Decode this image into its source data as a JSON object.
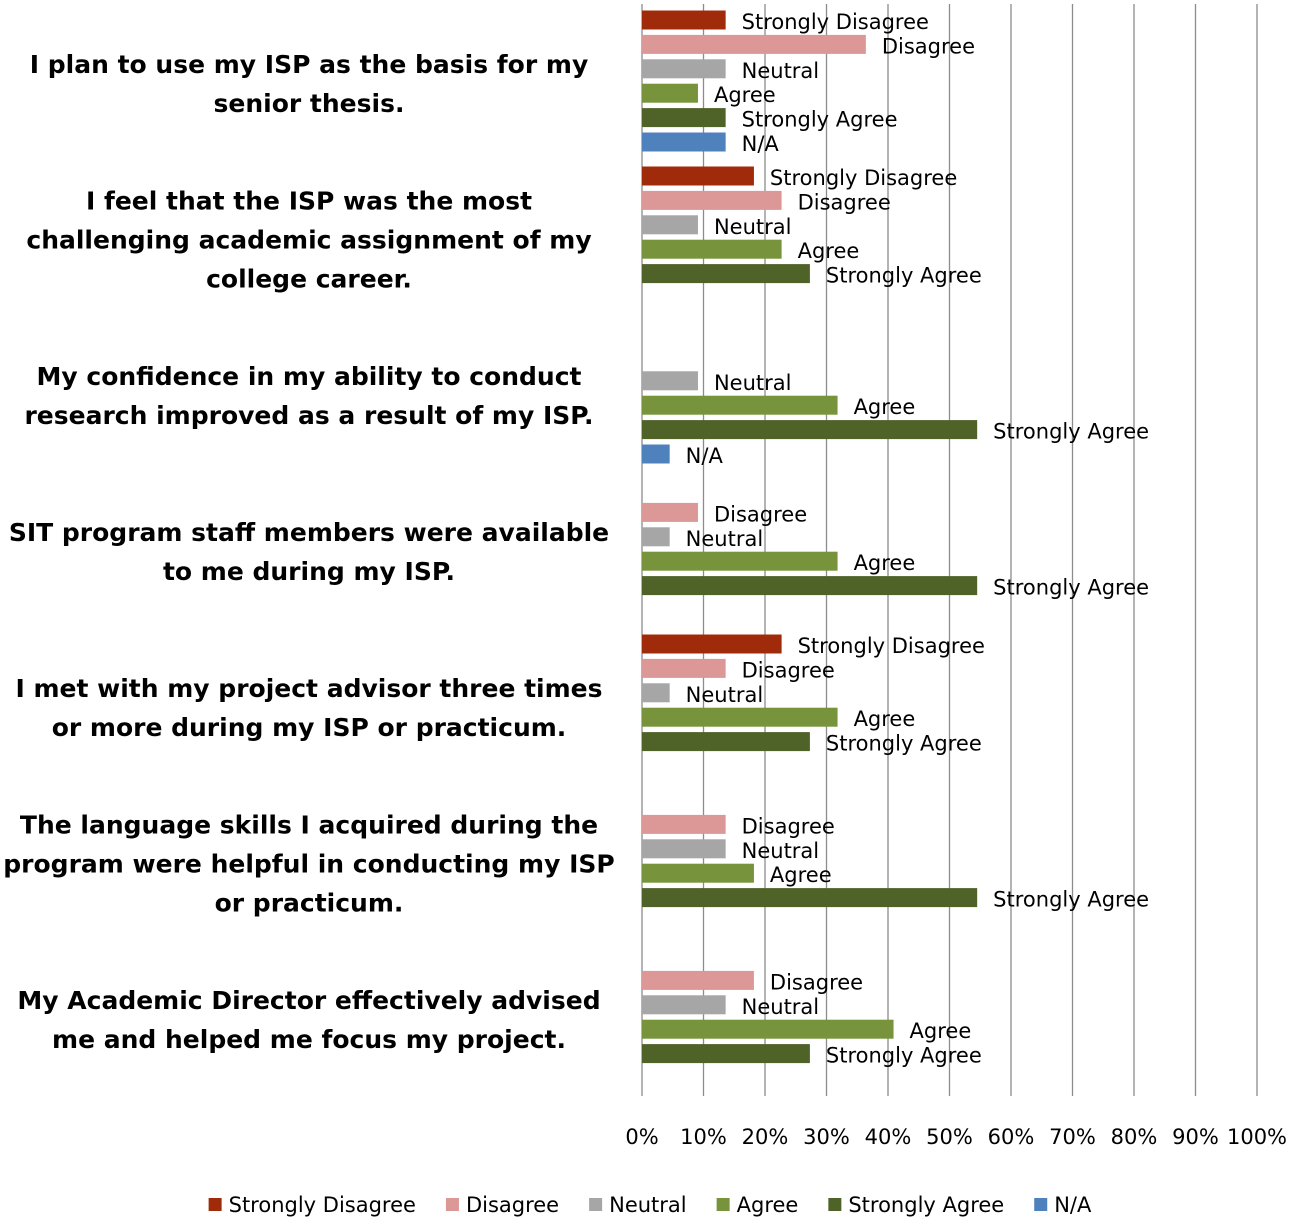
{
  "chart_data": {
    "type": "barh",
    "categories": [
      "I plan to use my ISP as the basis for my senior thesis.",
      "I feel that the ISP was the most challenging academic assignment of my college career.",
      "My confidence in my ability to conduct research improved as a result of my ISP.",
      "SIT program staff members were available to me during my ISP.",
      "I met with my project advisor three times or more during my ISP or practicum.",
      "The language skills I acquired during the program were helpful in conducting my ISP or practicum.",
      "My Academic Director effectively advised me and helped me focus my project."
    ],
    "series": [
      {
        "name": "Strongly Disagree",
        "color": "#a02b0b",
        "values": [
          13.6,
          18.2,
          null,
          null,
          22.7,
          null,
          null
        ]
      },
      {
        "name": "Disagree",
        "color": "#dc9896",
        "values": [
          36.4,
          22.7,
          null,
          9.1,
          13.6,
          13.6,
          18.2
        ]
      },
      {
        "name": "Neutral",
        "color": "#a6a6a6",
        "values": [
          13.6,
          9.1,
          9.1,
          4.5,
          4.5,
          13.6,
          13.6
        ]
      },
      {
        "name": "Agree",
        "color": "#77933c",
        "values": [
          9.1,
          22.7,
          31.8,
          31.8,
          31.8,
          18.2,
          40.9
        ]
      },
      {
        "name": "Strongly Agree",
        "color": "#4f6228",
        "values": [
          13.6,
          27.3,
          54.5,
          54.5,
          27.3,
          54.5,
          27.3
        ]
      },
      {
        "name": "N/A",
        "color": "#4f81bd",
        "values": [
          13.6,
          null,
          4.5,
          null,
          null,
          null,
          null
        ]
      }
    ],
    "xlim": [
      0,
      100
    ],
    "xticks": [
      {
        "value": 0,
        "label": "0%"
      },
      {
        "value": 10,
        "label": "10%"
      },
      {
        "value": 20,
        "label": "20%"
      },
      {
        "value": 30,
        "label": "30%"
      },
      {
        "value": 40,
        "label": "40%"
      },
      {
        "value": 50,
        "label": "50%"
      },
      {
        "value": 60,
        "label": "60%"
      },
      {
        "value": 70,
        "label": "70%"
      },
      {
        "value": 80,
        "label": "80%"
      },
      {
        "value": 90,
        "label": "90%"
      },
      {
        "value": 100,
        "label": "100%"
      }
    ],
    "grid": true,
    "legend": "bottom"
  }
}
